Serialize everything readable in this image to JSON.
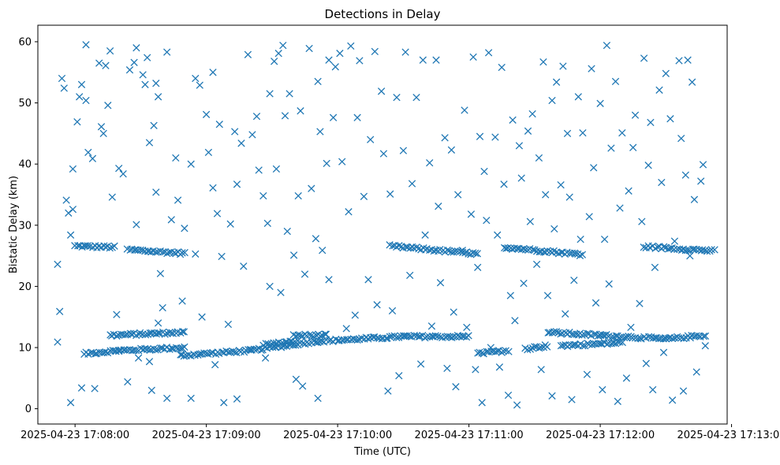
{
  "chart_data": {
    "type": "scatter",
    "title": "Detections in Delay",
    "xlabel": "Time (UTC)",
    "ylabel": "Bistatic Delay (km)",
    "marker": "x",
    "color": "#1f77b4",
    "grid": false,
    "legend": "none",
    "xlim": [
      "2025-04-23 17:07:43",
      "2025-04-23 17:12:58"
    ],
    "ylim": [
      -2.5,
      62.7
    ],
    "x_ticks": [
      "2025-04-23 17:08:00",
      "2025-04-23 17:09:00",
      "2025-04-23 17:10:00",
      "2025-04-23 17:11:00",
      "2025-04-23 17:12:00",
      "2025-04-23 17:13:00"
    ],
    "y_ticks": [
      0,
      10,
      20,
      30,
      40,
      50,
      60
    ],
    "time_span": {
      "start": "2025-04-23 17:07:49",
      "end": "2025-04-23 17:12:54"
    },
    "tracks": [
      {
        "points": [
          [
            "2025-04-23 17:08:00",
            26.6
          ],
          [
            "2025-04-23 17:08:18",
            26.4
          ]
        ]
      },
      {
        "points": [
          [
            "2025-04-23 17:08:24",
            26.0
          ],
          [
            "2025-04-23 17:08:50",
            25.4
          ]
        ]
      },
      {
        "points": [
          [
            "2025-04-23 17:08:04",
            9.0
          ],
          [
            "2025-04-23 17:08:20",
            9.5
          ],
          [
            "2025-04-23 17:08:50",
            10.0
          ]
        ]
      },
      {
        "points": [
          [
            "2025-04-23 17:08:16",
            12.0
          ],
          [
            "2025-04-23 17:08:50",
            12.5
          ]
        ]
      },
      {
        "points": [
          [
            "2025-04-23 17:08:48",
            8.7
          ],
          [
            "2025-04-23 17:09:20",
            9.5
          ],
          [
            "2025-04-23 17:09:50",
            11.0
          ],
          [
            "2025-04-23 17:10:30",
            11.8
          ],
          [
            "2025-04-23 17:11:00",
            11.8
          ]
        ]
      },
      {
        "points": [
          [
            "2025-04-23 17:09:26",
            10.5
          ],
          [
            "2025-04-23 17:09:42",
            11.0
          ]
        ]
      },
      {
        "points": [
          [
            "2025-04-23 17:09:40",
            12.0
          ],
          [
            "2025-04-23 17:09:55",
            12.0
          ]
        ]
      },
      {
        "points": [
          [
            "2025-04-23 17:10:24",
            26.6
          ],
          [
            "2025-04-23 17:11:04",
            25.3
          ]
        ]
      },
      {
        "points": [
          [
            "2025-04-23 17:11:04",
            9.0
          ],
          [
            "2025-04-23 17:11:18",
            9.5
          ]
        ]
      },
      {
        "points": [
          [
            "2025-04-23 17:11:16",
            26.4
          ],
          [
            "2025-04-23 17:11:52",
            25.2
          ]
        ]
      },
      {
        "points": [
          [
            "2025-04-23 17:11:26",
            9.8
          ],
          [
            "2025-04-23 17:11:36",
            10.3
          ]
        ]
      },
      {
        "points": [
          [
            "2025-04-23 17:11:36",
            12.5
          ],
          [
            "2025-04-23 17:12:00",
            12.0
          ],
          [
            "2025-04-23 17:12:30",
            11.4
          ],
          [
            "2025-04-23 17:12:48",
            12.0
          ]
        ]
      },
      {
        "points": [
          [
            "2025-04-23 17:11:42",
            10.3
          ],
          [
            "2025-04-23 17:12:10",
            10.8
          ]
        ]
      },
      {
        "points": [
          [
            "2025-04-23 17:12:20",
            26.5
          ],
          [
            "2025-04-23 17:12:52",
            25.8
          ]
        ]
      }
    ],
    "scattered_points": [
      [
        "2025-04-23 17:07:52",
        10.9
      ],
      [
        "2025-04-23 17:07:52",
        23.6
      ],
      [
        "2025-04-23 17:07:53",
        15.9
      ],
      [
        "2025-04-23 17:07:54",
        54.0
      ],
      [
        "2025-04-23 17:07:55",
        52.4
      ],
      [
        "2025-04-23 17:07:56",
        34.1
      ],
      [
        "2025-04-23 17:07:57",
        32.0
      ],
      [
        "2025-04-23 17:07:58",
        28.4
      ],
      [
        "2025-04-23 17:07:58",
        1.0
      ],
      [
        "2025-04-23 17:07:59",
        39.2
      ],
      [
        "2025-04-23 17:07:59",
        32.6
      ],
      [
        "2025-04-23 17:08:01",
        46.9
      ],
      [
        "2025-04-23 17:08:02",
        51.0
      ],
      [
        "2025-04-23 17:08:03",
        53.0
      ],
      [
        "2025-04-23 17:08:03",
        3.4
      ],
      [
        "2025-04-23 17:08:05",
        50.4
      ],
      [
        "2025-04-23 17:08:05",
        59.5
      ],
      [
        "2025-04-23 17:08:06",
        41.9
      ],
      [
        "2025-04-23 17:08:08",
        40.9
      ],
      [
        "2025-04-23 17:08:09",
        3.3
      ],
      [
        "2025-04-23 17:08:11",
        56.5
      ],
      [
        "2025-04-23 17:08:12",
        46.1
      ],
      [
        "2025-04-23 17:08:13",
        45.0
      ],
      [
        "2025-04-23 17:08:14",
        56.1
      ],
      [
        "2025-04-23 17:08:15",
        49.6
      ],
      [
        "2025-04-23 17:08:16",
        58.5
      ],
      [
        "2025-04-23 17:08:17",
        34.6
      ],
      [
        "2025-04-23 17:08:19",
        15.4
      ],
      [
        "2025-04-23 17:08:20",
        39.3
      ],
      [
        "2025-04-23 17:08:22",
        38.4
      ],
      [
        "2025-04-23 17:08:24",
        4.4
      ],
      [
        "2025-04-23 17:08:25",
        55.4
      ],
      [
        "2025-04-23 17:08:27",
        56.6
      ],
      [
        "2025-04-23 17:08:28",
        59.0
      ],
      [
        "2025-04-23 17:08:28",
        30.1
      ],
      [
        "2025-04-23 17:08:29",
        8.3
      ],
      [
        "2025-04-23 17:08:31",
        54.6
      ],
      [
        "2025-04-23 17:08:32",
        53.0
      ],
      [
        "2025-04-23 17:08:33",
        57.4
      ],
      [
        "2025-04-23 17:08:34",
        43.5
      ],
      [
        "2025-04-23 17:08:34",
        7.7
      ],
      [
        "2025-04-23 17:08:35",
        3.0
      ],
      [
        "2025-04-23 17:08:36",
        46.3
      ],
      [
        "2025-04-23 17:08:37",
        53.2
      ],
      [
        "2025-04-23 17:08:37",
        35.4
      ],
      [
        "2025-04-23 17:08:38",
        51.0
      ],
      [
        "2025-04-23 17:08:38",
        14.0
      ],
      [
        "2025-04-23 17:08:39",
        22.1
      ],
      [
        "2025-04-23 17:08:40",
        16.5
      ],
      [
        "2025-04-23 17:08:42",
        58.3
      ],
      [
        "2025-04-23 17:08:42",
        1.7
      ],
      [
        "2025-04-23 17:08:44",
        30.9
      ],
      [
        "2025-04-23 17:08:46",
        41.0
      ],
      [
        "2025-04-23 17:08:47",
        34.1
      ],
      [
        "2025-04-23 17:08:49",
        17.6
      ],
      [
        "2025-04-23 17:08:50",
        29.5
      ],
      [
        "2025-04-23 17:08:53",
        40.0
      ],
      [
        "2025-04-23 17:08:53",
        1.7
      ],
      [
        "2025-04-23 17:08:55",
        54.0
      ],
      [
        "2025-04-23 17:08:55",
        25.3
      ],
      [
        "2025-04-23 17:08:57",
        52.9
      ],
      [
        "2025-04-23 17:08:58",
        15.0
      ],
      [
        "2025-04-23 17:09:00",
        48.1
      ],
      [
        "2025-04-23 17:09:01",
        41.9
      ],
      [
        "2025-04-23 17:09:03",
        55.0
      ],
      [
        "2025-04-23 17:09:03",
        36.1
      ],
      [
        "2025-04-23 17:09:04",
        7.2
      ],
      [
        "2025-04-23 17:09:05",
        31.9
      ],
      [
        "2025-04-23 17:09:06",
        46.5
      ],
      [
        "2025-04-23 17:09:07",
        24.9
      ],
      [
        "2025-04-23 17:09:08",
        1.0
      ],
      [
        "2025-04-23 17:09:10",
        13.8
      ],
      [
        "2025-04-23 17:09:11",
        30.2
      ],
      [
        "2025-04-23 17:09:13",
        45.3
      ],
      [
        "2025-04-23 17:09:14",
        36.7
      ],
      [
        "2025-04-23 17:09:14",
        1.6
      ],
      [
        "2025-04-23 17:09:16",
        43.4
      ],
      [
        "2025-04-23 17:09:17",
        23.3
      ],
      [
        "2025-04-23 17:09:19",
        57.9
      ],
      [
        "2025-04-23 17:09:21",
        44.8
      ],
      [
        "2025-04-23 17:09:23",
        47.8
      ],
      [
        "2025-04-23 17:09:24",
        39.0
      ],
      [
        "2025-04-23 17:09:26",
        34.8
      ],
      [
        "2025-04-23 17:09:27",
        8.3
      ],
      [
        "2025-04-23 17:09:28",
        30.3
      ],
      [
        "2025-04-23 17:09:29",
        51.5
      ],
      [
        "2025-04-23 17:09:29",
        20.0
      ],
      [
        "2025-04-23 17:09:31",
        56.8
      ],
      [
        "2025-04-23 17:09:32",
        39.2
      ],
      [
        "2025-04-23 17:09:33",
        58.1
      ],
      [
        "2025-04-23 17:09:34",
        19.0
      ],
      [
        "2025-04-23 17:09:35",
        59.4
      ],
      [
        "2025-04-23 17:09:36",
        47.9
      ],
      [
        "2025-04-23 17:09:37",
        29.0
      ],
      [
        "2025-04-23 17:09:38",
        51.5
      ],
      [
        "2025-04-23 17:09:40",
        25.1
      ],
      [
        "2025-04-23 17:09:41",
        4.8
      ],
      [
        "2025-04-23 17:09:42",
        34.8
      ],
      [
        "2025-04-23 17:09:43",
        48.7
      ],
      [
        "2025-04-23 17:09:44",
        3.7
      ],
      [
        "2025-04-23 17:09:45",
        22.0
      ],
      [
        "2025-04-23 17:09:47",
        58.9
      ],
      [
        "2025-04-23 17:09:48",
        36.0
      ],
      [
        "2025-04-23 17:09:50",
        27.8
      ],
      [
        "2025-04-23 17:09:51",
        53.5
      ],
      [
        "2025-04-23 17:09:51",
        1.7
      ],
      [
        "2025-04-23 17:09:52",
        45.3
      ],
      [
        "2025-04-23 17:09:53",
        25.9
      ],
      [
        "2025-04-23 17:09:55",
        40.1
      ],
      [
        "2025-04-23 17:09:56",
        57.0
      ],
      [
        "2025-04-23 17:09:56",
        21.1
      ],
      [
        "2025-04-23 17:09:58",
        47.6
      ],
      [
        "2025-04-23 17:09:59",
        55.9
      ],
      [
        "2025-04-23 17:10:01",
        58.1
      ],
      [
        "2025-04-23 17:10:02",
        40.4
      ],
      [
        "2025-04-23 17:10:04",
        13.1
      ],
      [
        "2025-04-23 17:10:05",
        32.2
      ],
      [
        "2025-04-23 17:10:06",
        59.3
      ],
      [
        "2025-04-23 17:10:08",
        15.3
      ],
      [
        "2025-04-23 17:10:09",
        47.6
      ],
      [
        "2025-04-23 17:10:10",
        56.9
      ],
      [
        "2025-04-23 17:10:12",
        34.7
      ],
      [
        "2025-04-23 17:10:14",
        21.1
      ],
      [
        "2025-04-23 17:10:15",
        44.0
      ],
      [
        "2025-04-23 17:10:17",
        58.4
      ],
      [
        "2025-04-23 17:10:18",
        17.0
      ],
      [
        "2025-04-23 17:10:20",
        51.9
      ],
      [
        "2025-04-23 17:10:21",
        41.7
      ],
      [
        "2025-04-23 17:10:23",
        2.9
      ],
      [
        "2025-04-23 17:10:24",
        35.1
      ],
      [
        "2025-04-23 17:10:25",
        16.0
      ],
      [
        "2025-04-23 17:10:27",
        50.9
      ],
      [
        "2025-04-23 17:10:28",
        5.4
      ],
      [
        "2025-04-23 17:10:30",
        42.2
      ],
      [
        "2025-04-23 17:10:31",
        58.3
      ],
      [
        "2025-04-23 17:10:33",
        21.8
      ],
      [
        "2025-04-23 17:10:34",
        36.8
      ],
      [
        "2025-04-23 17:10:36",
        50.9
      ],
      [
        "2025-04-23 17:10:38",
        7.3
      ],
      [
        "2025-04-23 17:10:39",
        57.0
      ],
      [
        "2025-04-23 17:10:40",
        28.4
      ],
      [
        "2025-04-23 17:10:42",
        40.2
      ],
      [
        "2025-04-23 17:10:43",
        13.5
      ],
      [
        "2025-04-23 17:10:45",
        57.0
      ],
      [
        "2025-04-23 17:10:46",
        33.1
      ],
      [
        "2025-04-23 17:10:47",
        20.6
      ],
      [
        "2025-04-23 17:10:49",
        44.3
      ],
      [
        "2025-04-23 17:10:50",
        6.6
      ],
      [
        "2025-04-23 17:10:52",
        42.3
      ],
      [
        "2025-04-23 17:10:53",
        15.8
      ],
      [
        "2025-04-23 17:10:54",
        3.6
      ],
      [
        "2025-04-23 17:10:55",
        35.0
      ],
      [
        "2025-04-23 17:10:57",
        25.9
      ],
      [
        "2025-04-23 17:10:58",
        48.8
      ],
      [
        "2025-04-23 17:10:59",
        13.3
      ],
      [
        "2025-04-23 17:11:01",
        31.8
      ],
      [
        "2025-04-23 17:11:02",
        57.5
      ],
      [
        "2025-04-23 17:11:03",
        6.4
      ],
      [
        "2025-04-23 17:11:04",
        23.1
      ],
      [
        "2025-04-23 17:11:05",
        44.5
      ],
      [
        "2025-04-23 17:11:06",
        1.0
      ],
      [
        "2025-04-23 17:11:07",
        38.8
      ],
      [
        "2025-04-23 17:11:08",
        30.8
      ],
      [
        "2025-04-23 17:11:09",
        58.2
      ],
      [
        "2025-04-23 17:11:10",
        10.0
      ],
      [
        "2025-04-23 17:11:12",
        44.4
      ],
      [
        "2025-04-23 17:11:13",
        28.4
      ],
      [
        "2025-04-23 17:11:14",
        6.8
      ],
      [
        "2025-04-23 17:11:15",
        55.8
      ],
      [
        "2025-04-23 17:11:16",
        36.7
      ],
      [
        "2025-04-23 17:11:18",
        2.2
      ],
      [
        "2025-04-23 17:11:19",
        18.5
      ],
      [
        "2025-04-23 17:11:20",
        47.2
      ],
      [
        "2025-04-23 17:11:21",
        14.4
      ],
      [
        "2025-04-23 17:11:22",
        0.6
      ],
      [
        "2025-04-23 17:11:23",
        43.0
      ],
      [
        "2025-04-23 17:11:24",
        37.7
      ],
      [
        "2025-04-23 17:11:25",
        20.5
      ],
      [
        "2025-04-23 17:11:27",
        45.4
      ],
      [
        "2025-04-23 17:11:28",
        30.6
      ],
      [
        "2025-04-23 17:11:29",
        48.2
      ],
      [
        "2025-04-23 17:11:31",
        23.6
      ],
      [
        "2025-04-23 17:11:32",
        41.0
      ],
      [
        "2025-04-23 17:11:33",
        6.4
      ],
      [
        "2025-04-23 17:11:34",
        56.7
      ],
      [
        "2025-04-23 17:11:35",
        35.0
      ],
      [
        "2025-04-23 17:11:36",
        18.5
      ],
      [
        "2025-04-23 17:11:38",
        50.4
      ],
      [
        "2025-04-23 17:11:38",
        2.1
      ],
      [
        "2025-04-23 17:11:39",
        29.4
      ],
      [
        "2025-04-23 17:11:40",
        53.4
      ],
      [
        "2025-04-23 17:11:42",
        36.6
      ],
      [
        "2025-04-23 17:11:43",
        56.0
      ],
      [
        "2025-04-23 17:11:44",
        15.5
      ],
      [
        "2025-04-23 17:11:45",
        45.0
      ],
      [
        "2025-04-23 17:11:46",
        34.6
      ],
      [
        "2025-04-23 17:11:47",
        1.5
      ],
      [
        "2025-04-23 17:11:48",
        21.0
      ],
      [
        "2025-04-23 17:11:50",
        51.0
      ],
      [
        "2025-04-23 17:11:51",
        27.7
      ],
      [
        "2025-04-23 17:11:52",
        45.1
      ],
      [
        "2025-04-23 17:11:54",
        5.6
      ],
      [
        "2025-04-23 17:11:55",
        31.4
      ],
      [
        "2025-04-23 17:11:56",
        55.6
      ],
      [
        "2025-04-23 17:11:57",
        39.4
      ],
      [
        "2025-04-23 17:11:58",
        17.3
      ],
      [
        "2025-04-23 17:12:00",
        49.9
      ],
      [
        "2025-04-23 17:12:01",
        3.1
      ],
      [
        "2025-04-23 17:12:02",
        27.7
      ],
      [
        "2025-04-23 17:12:03",
        59.4
      ],
      [
        "2025-04-23 17:12:04",
        20.4
      ],
      [
        "2025-04-23 17:12:05",
        42.6
      ],
      [
        "2025-04-23 17:12:07",
        53.5
      ],
      [
        "2025-04-23 17:12:08",
        1.2
      ],
      [
        "2025-04-23 17:12:09",
        32.8
      ],
      [
        "2025-04-23 17:12:10",
        45.1
      ],
      [
        "2025-04-23 17:12:12",
        5.0
      ],
      [
        "2025-04-23 17:12:13",
        35.6
      ],
      [
        "2025-04-23 17:12:14",
        13.3
      ],
      [
        "2025-04-23 17:12:15",
        42.7
      ],
      [
        "2025-04-23 17:12:16",
        48.0
      ],
      [
        "2025-04-23 17:12:18",
        17.2
      ],
      [
        "2025-04-23 17:12:19",
        30.6
      ],
      [
        "2025-04-23 17:12:20",
        57.3
      ],
      [
        "2025-04-23 17:12:21",
        7.4
      ],
      [
        "2025-04-23 17:12:22",
        39.8
      ],
      [
        "2025-04-23 17:12:23",
        46.8
      ],
      [
        "2025-04-23 17:12:24",
        3.1
      ],
      [
        "2025-04-23 17:12:25",
        23.1
      ],
      [
        "2025-04-23 17:12:27",
        52.1
      ],
      [
        "2025-04-23 17:12:28",
        37.0
      ],
      [
        "2025-04-23 17:12:29",
        9.2
      ],
      [
        "2025-04-23 17:12:30",
        54.8
      ],
      [
        "2025-04-23 17:12:32",
        47.4
      ],
      [
        "2025-04-23 17:12:33",
        1.4
      ],
      [
        "2025-04-23 17:12:34",
        27.4
      ],
      [
        "2025-04-23 17:12:36",
        56.9
      ],
      [
        "2025-04-23 17:12:37",
        44.2
      ],
      [
        "2025-04-23 17:12:38",
        2.9
      ],
      [
        "2025-04-23 17:12:39",
        38.2
      ],
      [
        "2025-04-23 17:12:40",
        57.0
      ],
      [
        "2025-04-23 17:12:41",
        25.0
      ],
      [
        "2025-04-23 17:12:42",
        53.4
      ],
      [
        "2025-04-23 17:12:43",
        34.2
      ],
      [
        "2025-04-23 17:12:44",
        6.0
      ],
      [
        "2025-04-23 17:12:46",
        37.2
      ],
      [
        "2025-04-23 17:12:47",
        39.9
      ],
      [
        "2025-04-23 17:12:48",
        10.3
      ]
    ]
  }
}
